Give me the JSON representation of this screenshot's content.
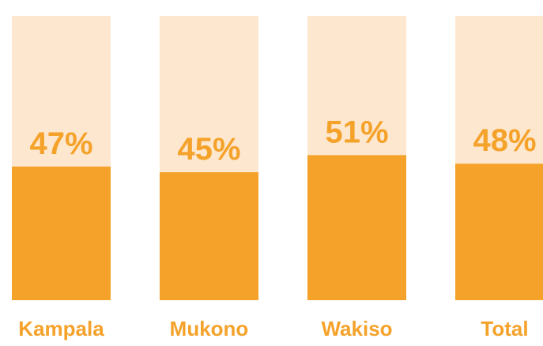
{
  "chart_data": {
    "type": "bar",
    "categories": [
      "Kampala",
      "Mukono",
      "Wakiso",
      "Total"
    ],
    "values": [
      47,
      45,
      51,
      48
    ],
    "value_labels": [
      "47%",
      "45%",
      "51%",
      "48%"
    ],
    "color": "#f5a22b",
    "track_color": "#fde8cf",
    "ylim": [
      0,
      100
    ]
  }
}
